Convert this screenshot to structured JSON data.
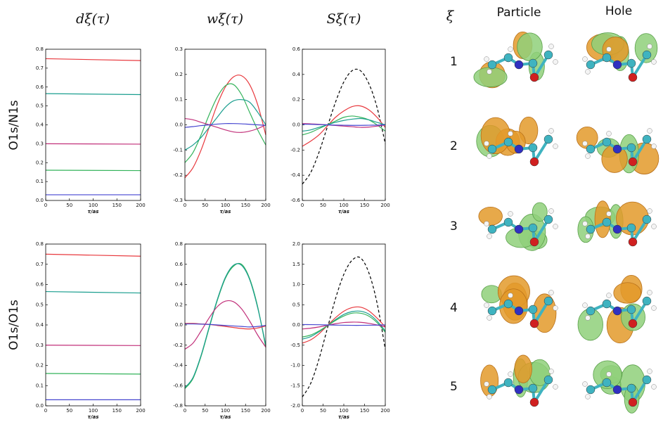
{
  "column_titles": [
    "dξ(τ)",
    "wξ(τ)",
    "Sξ(τ)"
  ],
  "row_labels": [
    "O1s/N1s",
    "O1s/O1s"
  ],
  "orbitals": {
    "header": "ξ",
    "columns": [
      "Particle",
      "Hole"
    ],
    "rows": [
      "1",
      "2",
      "3",
      "4",
      "5"
    ]
  },
  "chart_data": [
    {
      "type": "line",
      "xlabel": "τ/as",
      "x": [
        0,
        200
      ],
      "xlim": [
        0,
        200
      ],
      "xticks": [
        0,
        50,
        100,
        150,
        200
      ],
      "ylim": [
        0,
        0.8
      ],
      "yticks": [
        {
          "value": 0,
          "label": "0.0"
        },
        0.1,
        0.2,
        0.3,
        0.4,
        0.5,
        0.6,
        0.7,
        0.8
      ],
      "series": [
        {
          "color": "#e8383d",
          "values": [
            0.75,
            0.74
          ]
        },
        {
          "color": "#1a9e8f",
          "values": [
            0.565,
            0.56
          ]
        },
        {
          "color": "#c2307a",
          "values": [
            0.3,
            0.298
          ]
        },
        {
          "color": "#33b35a",
          "values": [
            0.16,
            0.158
          ]
        },
        {
          "color": "#4646d0",
          "values": [
            0.03,
            0.03
          ]
        }
      ]
    },
    {
      "type": "line",
      "xlabel": "τ/as",
      "x": [
        0,
        20,
        40,
        60,
        80,
        100,
        120,
        140,
        160,
        180,
        200
      ],
      "xlim": [
        0,
        200
      ],
      "xticks": [
        0,
        50,
        100,
        150,
        200
      ],
      "ylim": [
        -0.3,
        0.3
      ],
      "yticks": [
        -0.3,
        -0.2,
        -0.1,
        {
          "value": 0,
          "label": "0.0"
        },
        0.1,
        0.2,
        0.3
      ],
      "series": [
        {
          "color": "#e8383d",
          "values": [
            -0.21,
            -0.17,
            -0.1,
            -0.01,
            0.08,
            0.15,
            0.19,
            0.195,
            0.16,
            0.08,
            -0.04
          ]
        },
        {
          "color": "#33b35a",
          "values": [
            -0.15,
            -0.11,
            -0.04,
            0.04,
            0.11,
            0.155,
            0.16,
            0.12,
            0.05,
            -0.02,
            -0.08
          ]
        },
        {
          "color": "#1a9e8f",
          "values": [
            -0.1,
            -0.08,
            -0.05,
            -0.01,
            0.03,
            0.07,
            0.095,
            0.1,
            0.09,
            0.05,
            0
          ]
        },
        {
          "color": "#c2307a",
          "values": [
            0.025,
            0.02,
            0.01,
            0,
            -0.01,
            -0.02,
            -0.028,
            -0.03,
            -0.025,
            -0.015,
            0
          ]
        },
        {
          "color": "#4646d0",
          "values": [
            -0.01,
            -0.007,
            -0.003,
            0,
            0.003,
            0.005,
            0.005,
            0.004,
            0.002,
            0,
            -0.002
          ]
        }
      ]
    },
    {
      "type": "line",
      "xlabel": "τ/as",
      "x": [
        0,
        20,
        40,
        60,
        80,
        100,
        120,
        140,
        160,
        180,
        200
      ],
      "xlim": [
        0,
        200
      ],
      "xticks": [
        0,
        50,
        100,
        150,
        200
      ],
      "ylim": [
        -0.6,
        0.6
      ],
      "yticks": [
        -0.6,
        -0.4,
        -0.2,
        {
          "value": 0,
          "label": "0.0"
        },
        0.2,
        0.4,
        0.6
      ],
      "series": [
        {
          "color": "#000000",
          "dashed": true,
          "values": [
            -0.47,
            -0.38,
            -0.22,
            -0.02,
            0.18,
            0.34,
            0.43,
            0.43,
            0.33,
            0.14,
            -0.15
          ]
        },
        {
          "color": "#e8383d",
          "values": [
            -0.17,
            -0.13,
            -0.08,
            -0.01,
            0.06,
            0.11,
            0.145,
            0.15,
            0.12,
            0.06,
            -0.02
          ]
        },
        {
          "color": "#33b35a",
          "values": [
            -0.08,
            -0.06,
            -0.03,
            0,
            0.03,
            0.06,
            0.07,
            0.06,
            0.04,
            0,
            -0.05
          ]
        },
        {
          "color": "#1a9e8f",
          "values": [
            -0.05,
            -0.04,
            -0.02,
            0,
            0.02,
            0.035,
            0.045,
            0.05,
            0.04,
            0.02,
            0
          ]
        },
        {
          "color": "#c2307a",
          "values": [
            0.01,
            0.008,
            0.004,
            0,
            -0.005,
            -0.01,
            -0.015,
            -0.02,
            -0.018,
            -0.01,
            0
          ]
        },
        {
          "color": "#4646d0",
          "values": [
            0.005,
            0.004,
            0.002,
            0,
            -0.002,
            -0.003,
            -0.004,
            -0.004,
            -0.003,
            -0.002,
            0
          ]
        }
      ]
    },
    {
      "type": "line",
      "xlabel": "τ/as",
      "x": [
        0,
        200
      ],
      "xlim": [
        0,
        200
      ],
      "xticks": [
        0,
        50,
        100,
        150,
        200
      ],
      "ylim": [
        0,
        0.8
      ],
      "yticks": [
        {
          "value": 0,
          "label": "0.0"
        },
        0.1,
        0.2,
        0.3,
        0.4,
        0.5,
        0.6,
        0.7,
        0.8
      ],
      "series": [
        {
          "color": "#e8383d",
          "values": [
            0.75,
            0.74
          ]
        },
        {
          "color": "#1a9e8f",
          "values": [
            0.565,
            0.558
          ]
        },
        {
          "color": "#c2307a",
          "values": [
            0.3,
            0.298
          ]
        },
        {
          "color": "#33b35a",
          "values": [
            0.16,
            0.157
          ]
        },
        {
          "color": "#4646d0",
          "values": [
            0.03,
            0.03
          ]
        }
      ]
    },
    {
      "type": "line",
      "xlabel": "τ/as",
      "x": [
        0,
        20,
        40,
        60,
        80,
        100,
        120,
        140,
        160,
        180,
        200
      ],
      "xlim": [
        0,
        200
      ],
      "xticks": [
        0,
        50,
        100,
        150,
        200
      ],
      "ylim": [
        -0.8,
        0.8
      ],
      "yticks": [
        -0.8,
        -0.6,
        -0.4,
        -0.2,
        {
          "value": 0,
          "label": "0.0"
        },
        0.2,
        0.4,
        0.6,
        0.8
      ],
      "series": [
        {
          "color": "#33b35a",
          "values": [
            -0.63,
            -0.53,
            -0.31,
            -0.03,
            0.24,
            0.46,
            0.58,
            0.6,
            0.46,
            0.18,
            -0.22
          ]
        },
        {
          "color": "#1a9e8f",
          "values": [
            -0.62,
            -0.52,
            -0.3,
            -0.02,
            0.25,
            0.47,
            0.59,
            0.59,
            0.45,
            0.17,
            -0.2
          ]
        },
        {
          "color": "#c2307a",
          "values": [
            -0.24,
            -0.18,
            -0.06,
            0.07,
            0.18,
            0.235,
            0.23,
            0.16,
            0.04,
            -0.1,
            -0.22
          ]
        },
        {
          "color": "#e8383d",
          "values": [
            0.015,
            0.015,
            0.01,
            0.005,
            -0.005,
            -0.015,
            -0.025,
            -0.035,
            -0.04,
            -0.03,
            -0.01
          ]
        },
        {
          "color": "#4646d0",
          "values": [
            0.01,
            0.01,
            0.008,
            0.005,
            0,
            -0.005,
            -0.01,
            -0.015,
            -0.02,
            -0.015,
            -0.005
          ]
        }
      ]
    },
    {
      "type": "line",
      "xlabel": "τ/as",
      "x": [
        0,
        20,
        40,
        60,
        80,
        100,
        120,
        140,
        160,
        180,
        200
      ],
      "xlim": [
        0,
        200
      ],
      "xticks": [
        0,
        50,
        100,
        150,
        200
      ],
      "ylim": [
        -2,
        2
      ],
      "yticks": [
        {
          "value": -2,
          "label": "-2.0"
        },
        -1.5,
        {
          "value": -1,
          "label": "-1.0"
        },
        -0.5,
        {
          "value": 0,
          "label": "0.0"
        },
        0.5,
        {
          "value": 1,
          "label": "1.0"
        },
        1.5,
        {
          "value": 2,
          "label": "2.0"
        }
      ],
      "series": [
        {
          "color": "#000000",
          "dashed": true,
          "values": [
            -1.78,
            -1.45,
            -0.85,
            -0.1,
            0.65,
            1.25,
            1.6,
            1.66,
            1.3,
            0.55,
            -0.6
          ]
        },
        {
          "color": "#e8383d",
          "values": [
            -0.45,
            -0.37,
            -0.22,
            -0.02,
            0.18,
            0.34,
            0.43,
            0.44,
            0.35,
            0.17,
            -0.05
          ]
        },
        {
          "color": "#1a9e8f",
          "values": [
            -0.35,
            -0.29,
            -0.17,
            -0.02,
            0.13,
            0.26,
            0.33,
            0.34,
            0.27,
            0.1,
            -0.15
          ]
        },
        {
          "color": "#33b35a",
          "values": [
            -0.3,
            -0.25,
            -0.15,
            -0.02,
            0.11,
            0.22,
            0.29,
            0.29,
            0.22,
            0.06,
            -0.18
          ]
        },
        {
          "color": "#c2307a",
          "values": [
            -0.1,
            -0.08,
            -0.05,
            -0.01,
            0.03,
            0.06,
            0.07,
            0.065,
            0.04,
            0,
            -0.05
          ]
        },
        {
          "color": "#4646d0",
          "values": [
            0.01,
            0.008,
            0.005,
            0,
            -0.004,
            -0.008,
            -0.01,
            -0.01,
            -0.008,
            -0.004,
            0
          ]
        }
      ]
    }
  ]
}
